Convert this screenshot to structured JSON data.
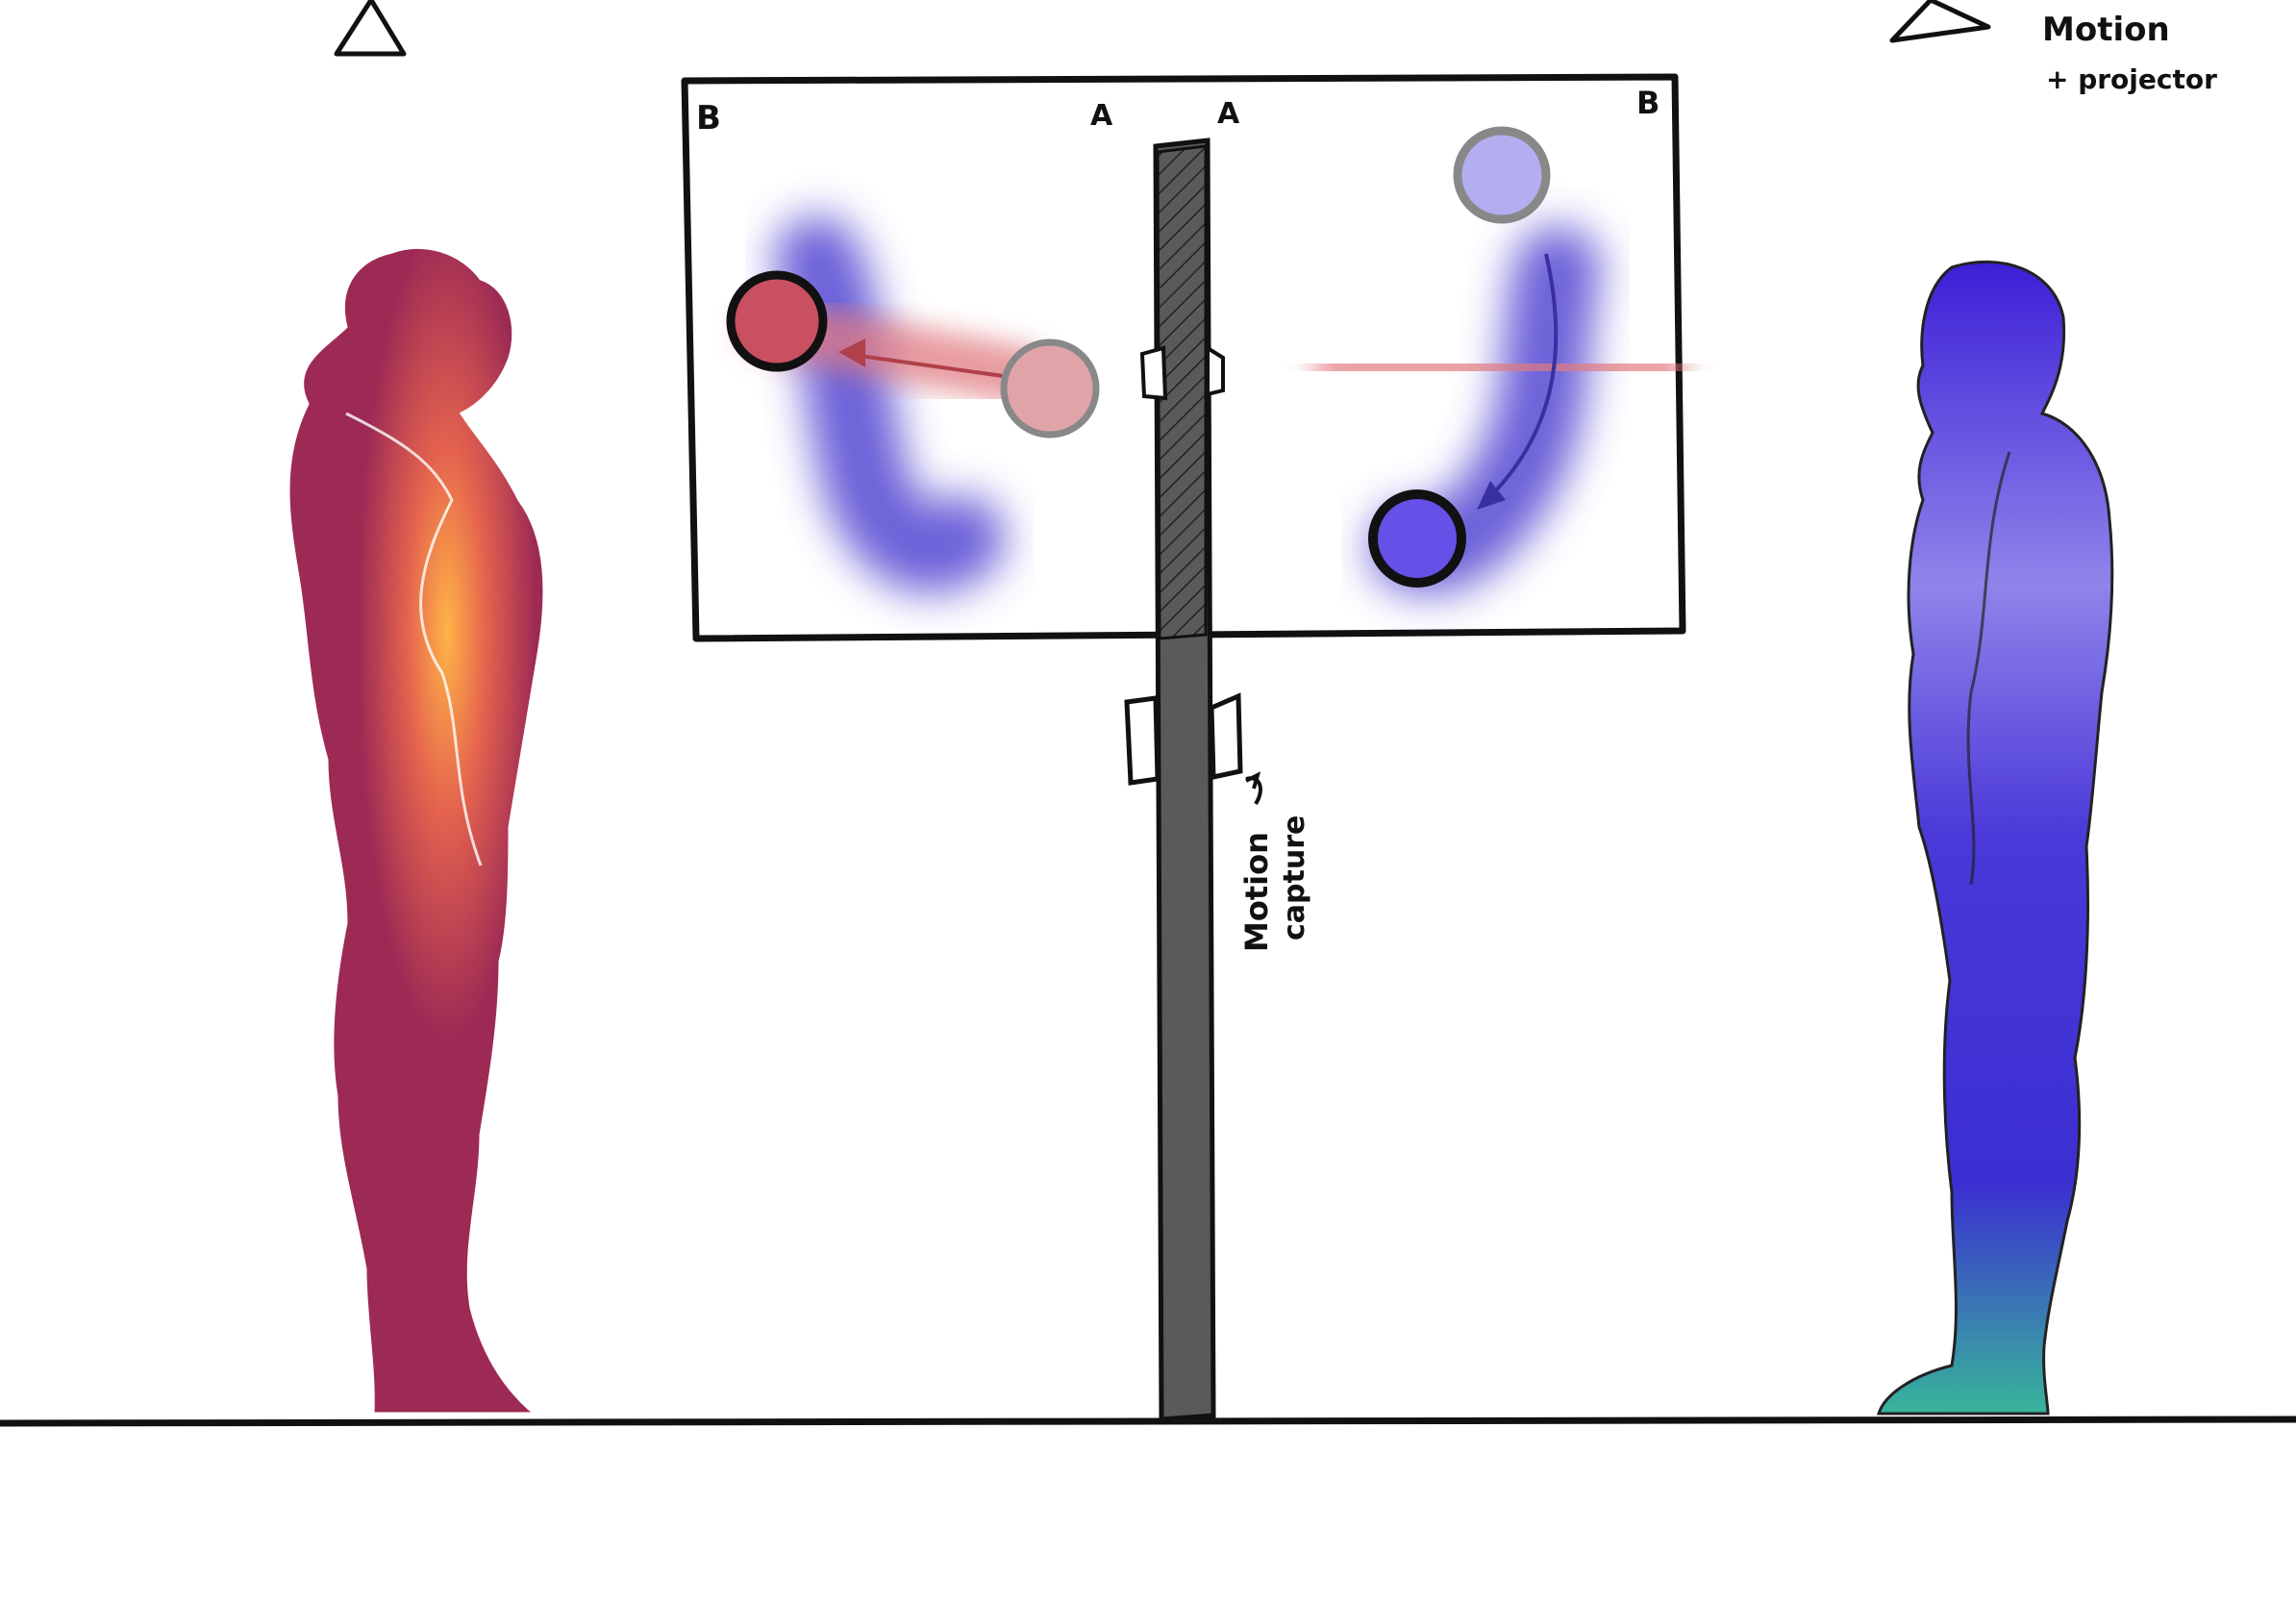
{
  "labels": {
    "screen_left_corner": "B",
    "screen_right_corner": "B",
    "pole_left_mark": "A",
    "pole_right_mark": "A",
    "top_right_line1": "Motion",
    "top_right_line2": "+ projector",
    "pole_note_line1": "Motion",
    "pole_note_line2": "capture"
  },
  "colors": {
    "background": "#ffffff",
    "outline": "#111111",
    "pole": "#5a5a5a",
    "left_figure": "#9c2a55",
    "left_glow": "#ffb347",
    "right_figure": "#3b1fd6",
    "right_glow": "#38b59a",
    "red_ball": "#c95060",
    "red_ball_ghost": "#e0a4a8",
    "blue_ball": "#6550e8",
    "blue_ball_ghost": "#b3aef0"
  },
  "icons": [
    "projector-triangle-icon",
    "projector-triangle-icon"
  ]
}
